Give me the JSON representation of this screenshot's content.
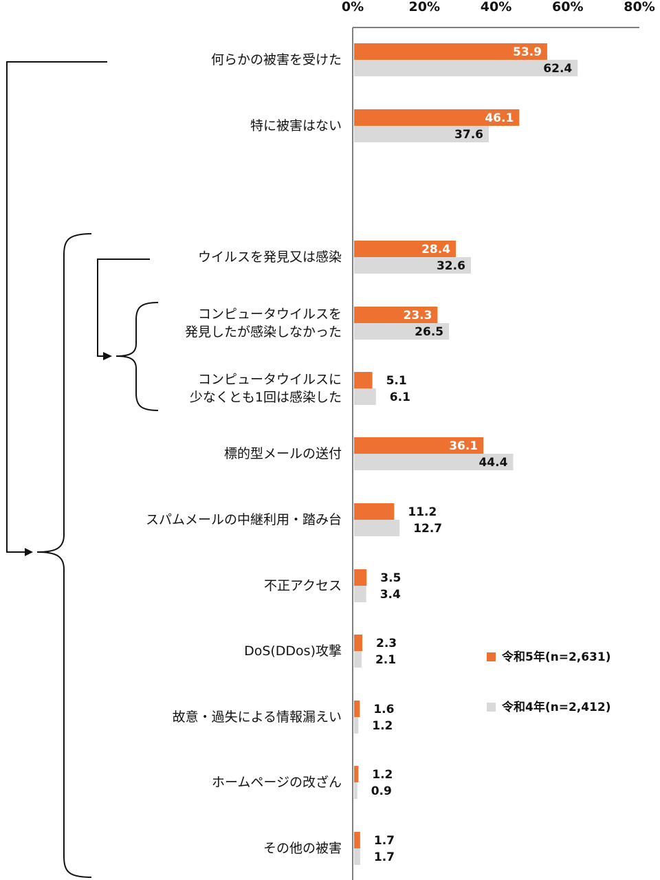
{
  "chart_data": {
    "type": "bar",
    "orientation": "horizontal",
    "xlim": [
      0,
      80
    ],
    "tick_labels": [
      "0%",
      "20%",
      "40%",
      "60%",
      "80%"
    ],
    "categories": [
      "何らかの被害を受けた",
      "特に被害はない",
      "ウイルスを発見又は感染",
      "コンピュータウイルスを\n発見したが感染しなかった",
      "コンピュータウイルスに\n少なくとも1回は感染した",
      "標的型メールの送付",
      "スパムメールの中継利用・踏み台",
      "不正アクセス",
      "DoS(DDos)攻撃",
      "故意・過失による情報漏えい",
      "ホームページの改ざん",
      "その他の被害"
    ],
    "series": [
      {
        "name": "令和5年(n=2,631)",
        "color": "#ED7231",
        "values": [
          53.9,
          46.1,
          28.4,
          23.3,
          5.1,
          36.1,
          11.2,
          3.5,
          2.3,
          1.6,
          1.2,
          1.7
        ],
        "labels": [
          "53.9",
          "46.1",
          "28.4",
          "23.3",
          "5.1",
          "36.1",
          "11.2",
          "3.5",
          "2.3",
          "1.6",
          "1.2",
          "1.7"
        ]
      },
      {
        "name": "令和4年(n=2,412)",
        "color": "#D9D9D9",
        "values": [
          62.4,
          37.6,
          32.6,
          26.5,
          6.1,
          44.4,
          12.7,
          3.4,
          2.1,
          1.2,
          0.9,
          1.7
        ],
        "labels": [
          "62.4",
          "37.6",
          "32.6",
          "26.5",
          "6.1",
          "44.4",
          "12.7",
          "3.4",
          "2.1",
          "1.2",
          "0.9",
          "1.7"
        ]
      }
    ]
  }
}
